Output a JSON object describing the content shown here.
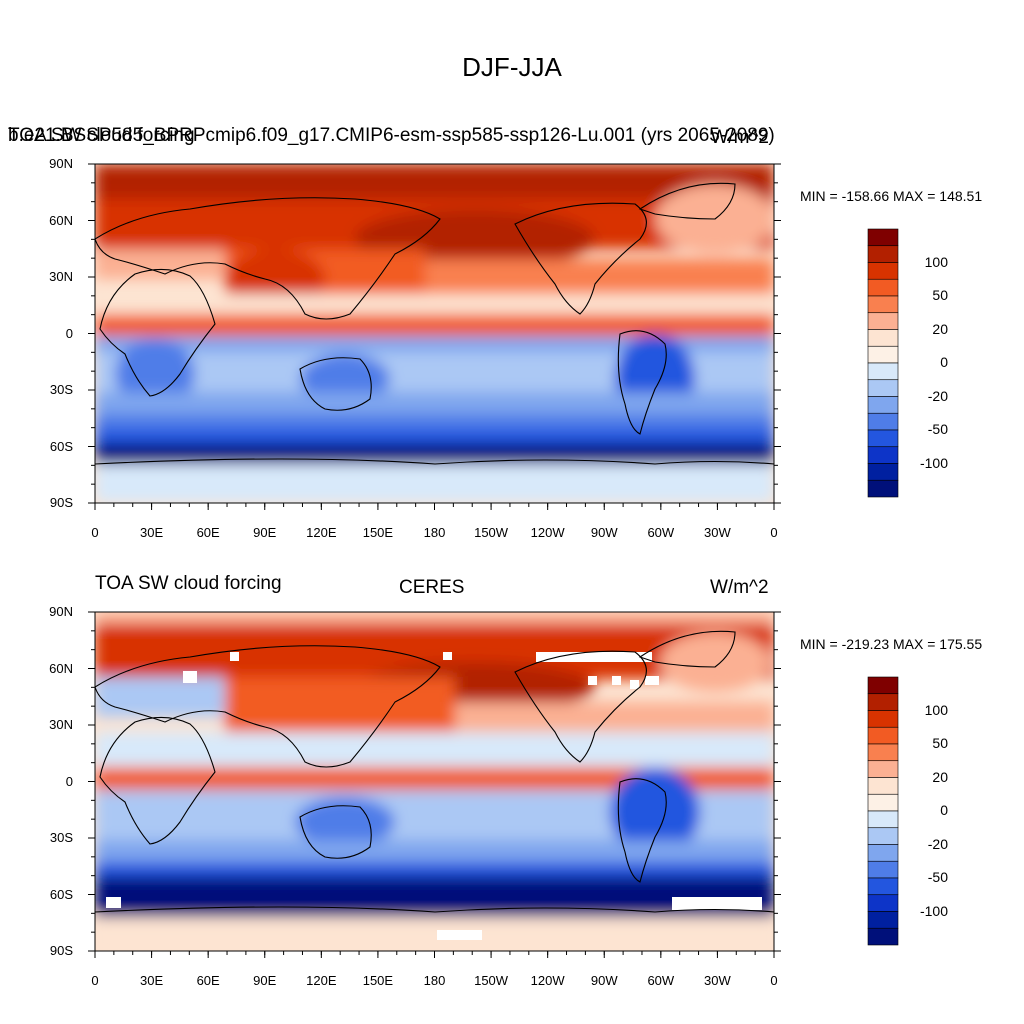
{
  "main_title": "DJF-JJA",
  "panels": [
    {
      "left_title": "b.e21.BSSP585_BPRPcmip6.f09_g17.CMIP6-esm-ssp585-ssp126-Lu.001 (yrs 2065-2089)",
      "left_overlap": "TOA SW cloud forcing",
      "center_title": "",
      "right_title": "W/m^2",
      "minmax": "MIN = -158.66 MAX = 148.51"
    },
    {
      "left_title": "TOA SW cloud forcing",
      "center_title": "CERES",
      "right_title": "W/m^2",
      "minmax": "MIN = -219.23 MAX = 175.55"
    }
  ],
  "lat_ticks": [
    "90N",
    "60N",
    "30N",
    "0",
    "30S",
    "60S",
    "90S"
  ],
  "lon_ticks": [
    "0",
    "30E",
    "60E",
    "90E",
    "120E",
    "150E",
    "180",
    "150W",
    "120W",
    "90W",
    "60W",
    "30W",
    "0"
  ],
  "colorbar": {
    "colors": [
      "#7f0000",
      "#b22000",
      "#d83300",
      "#f25b23",
      "#f9804f",
      "#fbb093",
      "#fde4d2",
      "#fdf1e6",
      "#d8e9fa",
      "#abc8f4",
      "#7fa6ee",
      "#4f7de8",
      "#2356df",
      "#0d34c8",
      "#0020a0",
      "#00107a"
    ],
    "labels": [
      "100",
      "50",
      "20",
      "0",
      "-20",
      "-50",
      "-100"
    ]
  }
}
